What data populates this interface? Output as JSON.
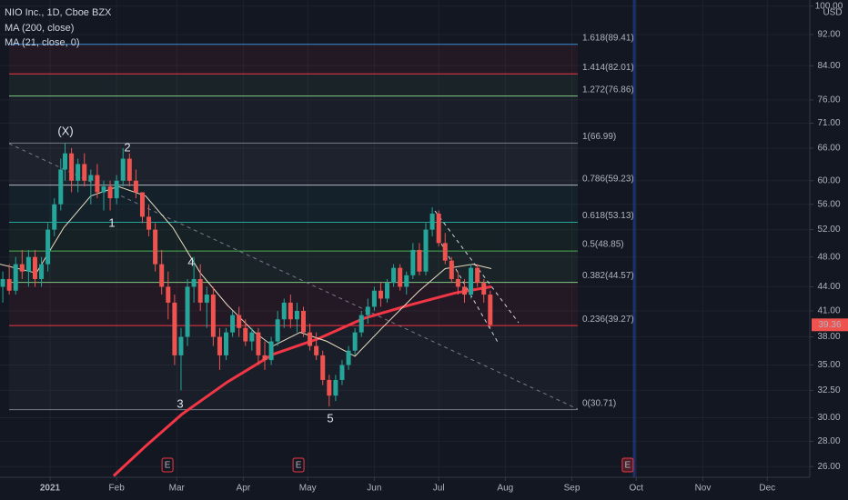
{
  "chart_data": {
    "type": "candlestick",
    "title": "NIO Inc., 1D, Cboe BZX",
    "currency": "USD",
    "log_scale": true,
    "grid": true,
    "up_color": "#26a69a",
    "down_color": "#ef5350",
    "x": [
      -22,
      -19,
      -16,
      -13,
      -10,
      -7,
      -4,
      -1,
      2,
      5,
      7,
      10,
      13,
      16,
      19,
      22,
      25,
      28,
      31,
      34,
      37,
      40,
      43,
      46,
      49,
      52,
      55,
      58,
      61,
      64,
      67,
      70,
      73,
      76,
      79,
      82,
      85,
      88,
      91,
      94,
      97,
      100,
      103,
      106,
      109,
      112,
      115,
      118,
      121,
      124,
      127,
      130,
      133,
      136,
      139,
      142,
      145,
      148,
      151,
      154,
      157,
      160,
      163,
      166,
      169,
      172,
      175,
      178,
      181,
      184,
      187,
      190,
      193,
      196,
      199,
      202,
      205
    ],
    "open": [
      44,
      45,
      43.5,
      47,
      46,
      48,
      45,
      47,
      52,
      56,
      62,
      65,
      60,
      63,
      60,
      61,
      58,
      59,
      57,
      60,
      64,
      60,
      58,
      54,
      52,
      47,
      44,
      42,
      36,
      38,
      44,
      45,
      42,
      43,
      38,
      36,
      38.5,
      40.5,
      39,
      37.5,
      38.5,
      36,
      35.5,
      37.5,
      40,
      42,
      40,
      41,
      38.5,
      37,
      36,
      33.5,
      32,
      33.5,
      35,
      36.5,
      38.5,
      40.5,
      41.5,
      43.5,
      42.5,
      44.5,
      46.5,
      44,
      45.5,
      49,
      46,
      52,
      54.5,
      50,
      47.5,
      45,
      44,
      43,
      46.5,
      44.5,
      43
    ],
    "high": [
      46,
      47,
      48,
      49,
      49,
      49,
      48,
      53,
      57,
      64,
      67,
      66,
      64,
      65,
      62,
      63,
      60,
      60,
      61,
      66,
      65,
      62,
      58,
      56,
      53,
      49,
      46,
      43,
      39,
      45,
      48,
      47,
      44,
      44,
      39,
      39,
      41,
      41.5,
      40,
      39,
      39,
      37.5,
      38,
      41,
      42.5,
      43,
      42,
      41.5,
      39.5,
      38.5,
      36.5,
      34,
      34,
      35.5,
      37,
      39,
      41,
      42.5,
      44,
      44.5,
      45,
      47,
      47,
      46,
      50,
      50,
      53,
      55.5,
      55,
      51.5,
      48,
      46,
      45,
      47,
      47,
      45,
      43.5
    ],
    "low": [
      42,
      43,
      43,
      45,
      44,
      44,
      44,
      46,
      51,
      55,
      60,
      58,
      58,
      59,
      56,
      57,
      55,
      55,
      56,
      59,
      59,
      57,
      53,
      51,
      46,
      43,
      40,
      35,
      32.5,
      37,
      42,
      41,
      39,
      37,
      34.5,
      35.5,
      38,
      38,
      37,
      36.5,
      35,
      34.5,
      35,
      37,
      39,
      39,
      38.5,
      38,
      36.5,
      35.5,
      33,
      31,
      31.5,
      33,
      34.5,
      36,
      38,
      39.5,
      41,
      41.5,
      42,
      44,
      43.5,
      43,
      45,
      45.5,
      45.5,
      51,
      49.5,
      47,
      44.5,
      43,
      42,
      42.5,
      44,
      42,
      39
    ],
    "close": [
      45,
      43.5,
      47,
      46,
      48,
      45,
      47,
      52,
      56,
      62,
      65,
      60,
      63,
      60,
      61,
      58,
      59,
      57,
      60,
      64,
      60,
      58,
      54,
      52,
      47,
      44,
      42,
      36,
      38,
      44,
      45,
      42,
      43,
      38,
      36,
      38.5,
      40.5,
      39,
      37.5,
      38.5,
      36,
      35.5,
      37.5,
      40,
      42,
      40,
      41,
      38.5,
      37,
      36,
      33.5,
      32,
      33.5,
      35,
      36.5,
      38.5,
      40.5,
      41.5,
      43.5,
      42.5,
      44.5,
      46.5,
      44,
      45.5,
      49,
      46,
      52,
      54.5,
      50,
      47.5,
      45,
      44,
      43,
      46.5,
      44.5,
      43,
      39.36
    ],
    "lines": [
      {
        "name": "MA (200, close)",
        "color": "#f23645",
        "width": 3,
        "x": [
          29.6,
          44.5,
          61.4,
          82.6,
          103.8,
          125,
          146,
          167.4,
          188.6,
          205.5
        ],
        "values": [
          25.3,
          27.6,
          30.3,
          33.3,
          36.1,
          37.8,
          40.1,
          41.7,
          43.2,
          44.0
        ]
      },
      {
        "name": "MA (21, close, 0)",
        "color": "#e8dcc0",
        "width": 1,
        "x": [
          -23.3,
          -6.4,
          6.4,
          19,
          31.8,
          44.5,
          57.2,
          70,
          82.6,
          95.3,
          103.8,
          116.5,
          129,
          142,
          154.6,
          171.6,
          184,
          197,
          205.5
        ],
        "values": [
          47.0,
          45.8,
          52.3,
          57.4,
          59.0,
          57.4,
          52.3,
          45.8,
          41.7,
          38.5,
          37.0,
          38.5,
          37.5,
          35.9,
          39.0,
          43.4,
          46.4,
          47.0,
          46.4
        ]
      }
    ],
    "levels": [
      {
        "value": 89.41,
        "label": "1.618(89.41)",
        "color": "#3d8fd6"
      },
      {
        "value": 82.01,
        "label": "1.414(82.01)",
        "color": "#f23645"
      },
      {
        "value": 76.86,
        "label": "1.272(76.86)",
        "color": "#81c784"
      },
      {
        "value": 66.99,
        "label": "1(66.99)",
        "color": "#787b86"
      },
      {
        "value": 59.23,
        "label": "0.786(59.23)",
        "color": "#b2b5be"
      },
      {
        "value": 53.13,
        "label": "0.618(53.13)",
        "color": "#26a69a"
      },
      {
        "value": 48.85,
        "label": "0.5(48.85)",
        "color": "#4caf50"
      },
      {
        "value": 44.57,
        "label": "0.382(44.57)",
        "color": "#81c784"
      },
      {
        "value": 39.27,
        "label": "0.236(39.27)",
        "color": "#f23645"
      },
      {
        "value": 30.71,
        "label": "0(30.71)",
        "color": "#787b86"
      }
    ],
    "annotations": [
      "(X)",
      "2",
      "1",
      "4",
      "3",
      "5"
    ],
    "events": [
      {
        "label": "E",
        "x": 54.7
      },
      {
        "label": "E",
        "x": 115.7
      },
      {
        "label": "E",
        "x": 269
      }
    ],
    "xlim": [
      -23.3,
      353.8
    ],
    "xticks": [
      {
        "value": 0,
        "label": "2021"
      },
      {
        "value": 31,
        "label": "Feb"
      },
      {
        "value": 59,
        "label": "Mar"
      },
      {
        "value": 90,
        "label": "Apr"
      },
      {
        "value": 120,
        "label": "May"
      },
      {
        "value": 151,
        "label": "Jun"
      },
      {
        "value": 181,
        "label": "Jul"
      },
      {
        "value": 212,
        "label": "Aug"
      },
      {
        "value": 243,
        "label": "Sep"
      },
      {
        "value": 273,
        "label": "Oct"
      },
      {
        "value": 304,
        "label": "Nov"
      },
      {
        "value": 334,
        "label": "Dec"
      }
    ],
    "ylim": [
      25.2,
      101.8
    ],
    "yticks": [
      {
        "value": 100,
        "label": "100.00"
      },
      {
        "value": 92,
        "label": "92.00"
      },
      {
        "value": 84,
        "label": "84.00"
      },
      {
        "value": 76,
        "label": "76.00"
      },
      {
        "value": 71,
        "label": "71.00"
      },
      {
        "value": 66,
        "label": "66.00"
      },
      {
        "value": 60,
        "label": "60.00"
      },
      {
        "value": 56,
        "label": "56.00"
      },
      {
        "value": 52,
        "label": "52.00"
      },
      {
        "value": 48,
        "label": "48.00"
      },
      {
        "value": 44,
        "label": "44.00"
      },
      {
        "value": 41,
        "label": "41.00"
      },
      {
        "value": 38,
        "label": "38.00"
      },
      {
        "value": 35,
        "label": "35.00"
      },
      {
        "value": 32.5,
        "label": "32.50"
      },
      {
        "value": 30,
        "label": "30.00"
      },
      {
        "value": 28,
        "label": "28.00"
      },
      {
        "value": 26,
        "label": "26.00"
      }
    ]
  }
}
